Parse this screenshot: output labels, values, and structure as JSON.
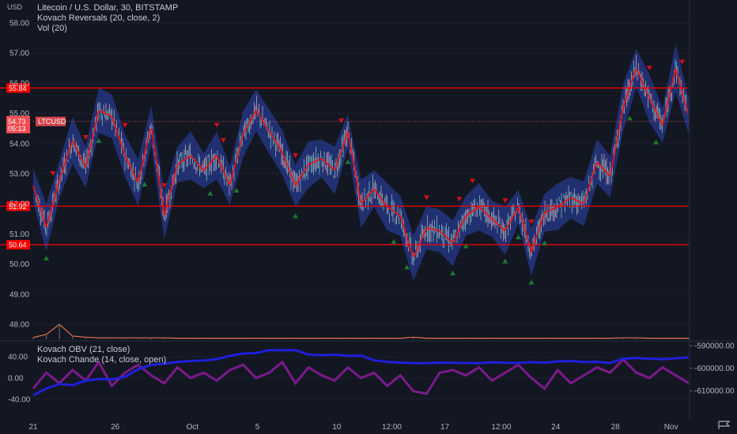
{
  "currency_label": "USD",
  "legend": {
    "symbol": "Litecoin / U.S. Dollar, 30, BITSTAMP",
    "indicator1": "Kovach Reversals (20, close, 2)",
    "indicator2": "Vol (20)",
    "sub_indicator1": "Kovach OBV (21, close)",
    "sub_indicator2": "Kovach Chande (14, close, open)"
  },
  "price_tag": {
    "ticker": "LTCUSD",
    "price": "54.73",
    "countdown": "05:13"
  },
  "colors": {
    "background": "#131722",
    "bull_marker": "#1b7a2e",
    "bear_marker": "#d0101a",
    "hline": "#ff0000",
    "band": "#263a8c",
    "price_line": "#e0161a",
    "obv_line": "#1f1fdc",
    "chande_line": "#7b1a8a",
    "volume_line": "#e8734a"
  },
  "chart_data": [
    {
      "type": "line",
      "title": "Litecoin / U.S. Dollar, 30, BITSTAMP",
      "ylabel": "USD",
      "ylim": [
        47.5,
        58.4
      ],
      "y_ticks": [
        "58.00",
        "57.00",
        "56.00",
        "55.00",
        "54.00",
        "53.00",
        "52.00",
        "51.00",
        "50.00",
        "49.00",
        "48.00"
      ],
      "x_ticks": [
        "21",
        "26",
        "Oct",
        "5",
        "10",
        "12:00",
        "17",
        "12:00",
        "24",
        "28",
        "Nov"
      ],
      "horizontal_levels": [
        {
          "label": "55.84",
          "value": 55.84
        },
        {
          "label": "51.92",
          "value": 51.92
        },
        {
          "label": "50.64",
          "value": 50.64
        }
      ],
      "current_price": 54.73,
      "x": [
        0,
        2,
        4,
        6,
        8,
        10,
        12,
        14,
        16,
        18,
        20,
        22,
        24,
        26,
        28,
        30,
        32,
        34,
        36,
        38,
        40,
        42,
        44,
        46,
        48,
        50,
        52,
        54,
        56,
        58,
        60,
        62,
        64,
        66,
        68,
        70,
        72,
        74,
        76,
        78,
        80,
        82,
        84,
        86,
        88,
        90,
        92,
        94,
        96,
        98,
        100
      ],
      "series": [
        {
          "values": [
            52.6,
            51.2,
            52.8,
            54.1,
            53.2,
            55.1,
            54.9,
            53.6,
            52.7,
            54.6,
            51.6,
            53.3,
            53.6,
            53.1,
            53.6,
            52.6,
            54.3,
            55.1,
            54.4,
            53.7,
            52.6,
            53.3,
            53.5,
            53.1,
            54.4,
            52.0,
            52.5,
            51.9,
            51.6,
            50.2,
            51.2,
            51.1,
            50.7,
            51.6,
            51.9,
            51.5,
            51.1,
            51.9,
            50.4,
            51.7,
            51.9,
            52.2,
            52.0,
            53.4,
            52.9,
            55.2,
            56.5,
            55.5,
            54.6,
            56.5,
            54.9
          ]
        }
      ],
      "volume": {
        "label": "Vol (20)",
        "x": [
          0,
          2,
          4,
          6,
          8,
          10,
          12,
          14,
          16,
          18,
          20,
          22,
          24,
          26,
          28,
          30,
          32,
          34,
          36,
          38,
          40,
          42,
          44,
          46,
          48,
          50,
          52,
          54,
          56,
          58,
          60,
          62,
          64,
          66,
          68,
          70,
          72,
          74,
          76,
          78,
          80,
          82,
          84,
          86,
          88,
          90,
          92,
          94,
          96,
          98,
          100
        ],
        "values": [
          5,
          14,
          42,
          9,
          6,
          4,
          4,
          4,
          4,
          4,
          4,
          3,
          3,
          3,
          3,
          3,
          3,
          3,
          3,
          3,
          3,
          3,
          3,
          3,
          3,
          3,
          3,
          3,
          3,
          6,
          3,
          3,
          3,
          3,
          3,
          3,
          3,
          3,
          3,
          3,
          3,
          3,
          3,
          3,
          3,
          4,
          4,
          3,
          3,
          3,
          3
        ]
      },
      "reversal_markers": {
        "bear_x": [
          3,
          8,
          14,
          20,
          28,
          29,
          40,
          47,
          60,
          65,
          67,
          72,
          76,
          94,
          99
        ],
        "bull_x": [
          2,
          10,
          17,
          27,
          31,
          40,
          48,
          55,
          57,
          64,
          66,
          72,
          74,
          76,
          78,
          91,
          95
        ]
      }
    },
    {
      "type": "line",
      "title": "Kovach OBV (21, close) / Kovach Chande (14, close, open)",
      "ylim": [
        -55,
        55
      ],
      "y_ticks": [
        "40.00",
        "0.00",
        "-40.00"
      ],
      "y2_ticks": [
        "-590000.00",
        "-600000.00",
        "-610000.00"
      ],
      "x": [
        0,
        2,
        4,
        6,
        8,
        10,
        12,
        14,
        16,
        18,
        20,
        22,
        24,
        26,
        28,
        30,
        32,
        34,
        36,
        38,
        40,
        42,
        44,
        46,
        48,
        50,
        52,
        54,
        56,
        58,
        60,
        62,
        64,
        66,
        68,
        70,
        72,
        74,
        76,
        78,
        80,
        82,
        84,
        86,
        88,
        90,
        92,
        94,
        96,
        98,
        100
      ],
      "series": [
        {
          "name": "Kovach OBV (21, close)",
          "values": [
            -612000,
            -609000,
            -607000,
            -607500,
            -605500,
            -604800,
            -605000,
            -603800,
            -600500,
            -598500,
            -598000,
            -597200,
            -596800,
            -596600,
            -596000,
            -594500,
            -593500,
            -593300,
            -592000,
            -592000,
            -592000,
            -594000,
            -594200,
            -594000,
            -594500,
            -594400,
            -596500,
            -597200,
            -597500,
            -597800,
            -597800,
            -597500,
            -597600,
            -597700,
            -597800,
            -597400,
            -597600,
            -597700,
            -597300,
            -597600,
            -597000,
            -596800,
            -597300,
            -597200,
            -597700,
            -595800,
            -595500,
            -595800,
            -596000,
            -595600,
            -595200
          ]
        },
        {
          "name": "Kovach Chande (14, close, open)",
          "values": [
            -20,
            10,
            -10,
            15,
            -5,
            30,
            -15,
            10,
            25,
            5,
            -10,
            20,
            0,
            10,
            -5,
            15,
            25,
            0,
            10,
            30,
            -10,
            20,
            5,
            -5,
            20,
            0,
            10,
            -15,
            5,
            -25,
            -30,
            10,
            15,
            5,
            20,
            -5,
            10,
            25,
            0,
            -20,
            15,
            -10,
            5,
            20,
            10,
            35,
            10,
            0,
            20,
            5,
            -10
          ]
        }
      ]
    }
  ]
}
